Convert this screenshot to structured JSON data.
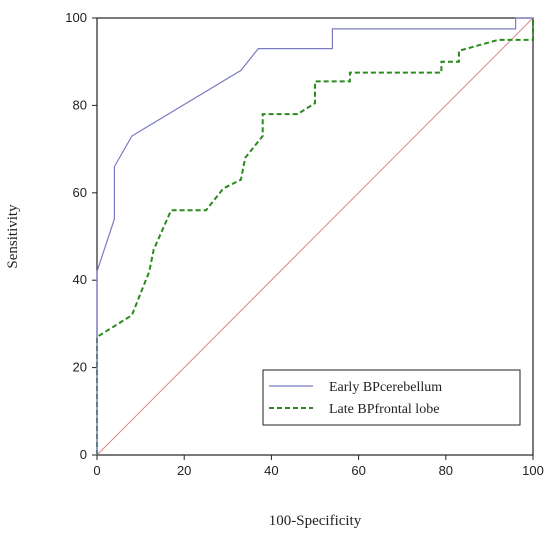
{
  "chart_data": {
    "type": "line",
    "title": "",
    "xlabel": "100-Specificity",
    "ylabel": "Sensitivity",
    "xlim": [
      0,
      100
    ],
    "ylim": [
      0,
      100
    ],
    "x_ticks": [
      0,
      20,
      40,
      60,
      80,
      100
    ],
    "y_ticks": [
      0,
      20,
      40,
      60,
      80,
      100
    ],
    "grid": false,
    "legend_position": "bottom-right",
    "series": [
      {
        "name": "Early BPcerebellum",
        "color": "#7b7bc4",
        "style": "solid",
        "points": [
          [
            0,
            0
          ],
          [
            0,
            42
          ],
          [
            4,
            54
          ],
          [
            4,
            66
          ],
          [
            8,
            73
          ],
          [
            33,
            88
          ],
          [
            37,
            93
          ],
          [
            54,
            93
          ],
          [
            54,
            97.5
          ],
          [
            96,
            97.5
          ],
          [
            96,
            100
          ],
          [
            100,
            100
          ]
        ]
      },
      {
        "name": "Late BPfrontal lobe",
        "color": "#2a8a1e",
        "style": "dashed",
        "points": [
          [
            0,
            0
          ],
          [
            0,
            27
          ],
          [
            8,
            32
          ],
          [
            10,
            37
          ],
          [
            12,
            42
          ],
          [
            13,
            47
          ],
          [
            17,
            56
          ],
          [
            25,
            56
          ],
          [
            29,
            61
          ],
          [
            33,
            63
          ],
          [
            34,
            68
          ],
          [
            38,
            73
          ],
          [
            38,
            78
          ],
          [
            46,
            78
          ],
          [
            50,
            80.5
          ],
          [
            50,
            85.5
          ],
          [
            58,
            85.5
          ],
          [
            58,
            87.5
          ],
          [
            79,
            87.5
          ],
          [
            79,
            90
          ],
          [
            83,
            90
          ],
          [
            83,
            92.5
          ],
          [
            92,
            95
          ],
          [
            100,
            95
          ],
          [
            100,
            100
          ]
        ]
      },
      {
        "name": "",
        "color": "#d9868a",
        "style": "solid",
        "points": [
          [
            0,
            0
          ],
          [
            100,
            100
          ]
        ]
      }
    ]
  }
}
